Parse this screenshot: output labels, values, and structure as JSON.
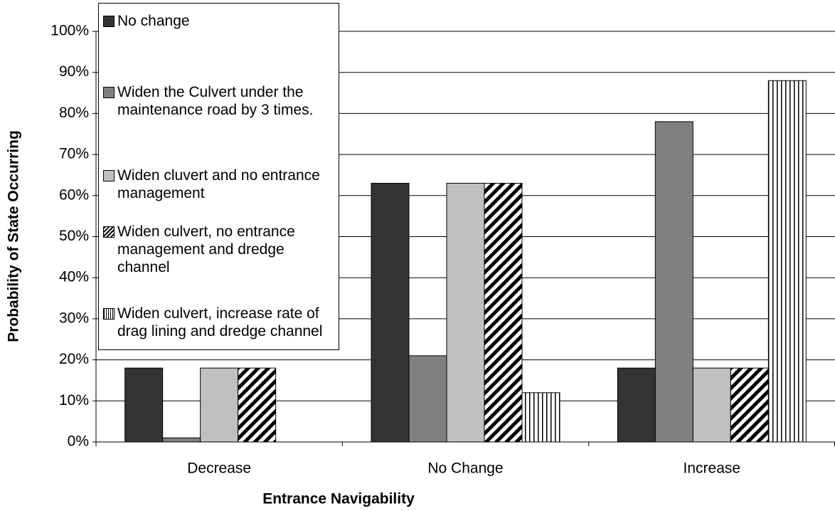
{
  "chart_data": {
    "type": "bar",
    "categories": [
      "Decrease",
      "No Change",
      "Increase"
    ],
    "series": [
      {
        "name": "No change",
        "color": "#333333",
        "values": [
          18,
          63,
          18
        ]
      },
      {
        "name": "Widen the Culvert under the maintenance road by 3 times.",
        "color": "#808080",
        "values": [
          1,
          21,
          78
        ]
      },
      {
        "name": "Widen cluvert and no entrance management",
        "color": "#c0c0c0",
        "values": [
          18,
          63,
          18
        ]
      },
      {
        "name": "Widen culvert, no entrance management and dredge channel",
        "color": "#ffffff",
        "hatch": "diagonal",
        "values": [
          18,
          63,
          18
        ]
      },
      {
        "name": "Widen culvert, increase rate of drag lining and dredge channel",
        "color": "#ffffff",
        "hatch": "vertical",
        "values": [
          0,
          12,
          88
        ]
      }
    ],
    "ylim": [
      0,
      100
    ],
    "yticks": [
      {
        "value": 0,
        "label": "0%"
      },
      {
        "value": 10,
        "label": "10%"
      },
      {
        "value": 20,
        "label": "20%"
      },
      {
        "value": 30,
        "label": "30%"
      },
      {
        "value": 40,
        "label": "40%"
      },
      {
        "value": 50,
        "label": "50%"
      },
      {
        "value": 60,
        "label": "60%"
      },
      {
        "value": 70,
        "label": "70%"
      },
      {
        "value": 80,
        "label": "80%"
      },
      {
        "value": 90,
        "label": "90%"
      },
      {
        "value": 100,
        "label": "100%"
      }
    ],
    "grid": true,
    "xlabel": "Entrance Navigability",
    "ylabel": "Probability of State Occurring",
    "legend": "top-left"
  }
}
